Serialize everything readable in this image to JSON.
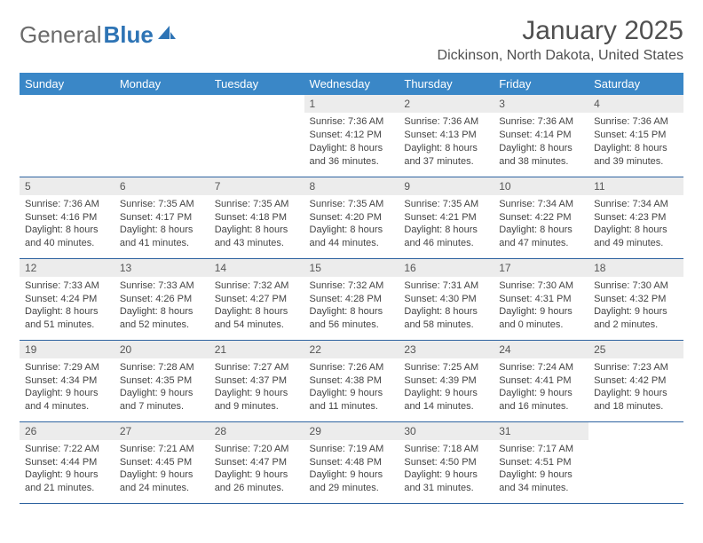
{
  "logo": {
    "text_general": "General",
    "text_blue": "Blue"
  },
  "title": "January 2025",
  "location": "Dickinson, North Dakota, United States",
  "colors": {
    "header_bg": "#3a87c7",
    "header_text": "#ffffff",
    "daynum_bg": "#ececec",
    "row_border": "#2e63a0",
    "logo_blue": "#2e74b5"
  },
  "day_headers": [
    "Sunday",
    "Monday",
    "Tuesday",
    "Wednesday",
    "Thursday",
    "Friday",
    "Saturday"
  ],
  "weeks": [
    [
      {
        "num": "",
        "lines": [
          "",
          "",
          "",
          ""
        ]
      },
      {
        "num": "",
        "lines": [
          "",
          "",
          "",
          ""
        ]
      },
      {
        "num": "",
        "lines": [
          "",
          "",
          "",
          ""
        ]
      },
      {
        "num": "1",
        "lines": [
          "Sunrise: 7:36 AM",
          "Sunset: 4:12 PM",
          "Daylight: 8 hours",
          "and 36 minutes."
        ]
      },
      {
        "num": "2",
        "lines": [
          "Sunrise: 7:36 AM",
          "Sunset: 4:13 PM",
          "Daylight: 8 hours",
          "and 37 minutes."
        ]
      },
      {
        "num": "3",
        "lines": [
          "Sunrise: 7:36 AM",
          "Sunset: 4:14 PM",
          "Daylight: 8 hours",
          "and 38 minutes."
        ]
      },
      {
        "num": "4",
        "lines": [
          "Sunrise: 7:36 AM",
          "Sunset: 4:15 PM",
          "Daylight: 8 hours",
          "and 39 minutes."
        ]
      }
    ],
    [
      {
        "num": "5",
        "lines": [
          "Sunrise: 7:36 AM",
          "Sunset: 4:16 PM",
          "Daylight: 8 hours",
          "and 40 minutes."
        ]
      },
      {
        "num": "6",
        "lines": [
          "Sunrise: 7:35 AM",
          "Sunset: 4:17 PM",
          "Daylight: 8 hours",
          "and 41 minutes."
        ]
      },
      {
        "num": "7",
        "lines": [
          "Sunrise: 7:35 AM",
          "Sunset: 4:18 PM",
          "Daylight: 8 hours",
          "and 43 minutes."
        ]
      },
      {
        "num": "8",
        "lines": [
          "Sunrise: 7:35 AM",
          "Sunset: 4:20 PM",
          "Daylight: 8 hours",
          "and 44 minutes."
        ]
      },
      {
        "num": "9",
        "lines": [
          "Sunrise: 7:35 AM",
          "Sunset: 4:21 PM",
          "Daylight: 8 hours",
          "and 46 minutes."
        ]
      },
      {
        "num": "10",
        "lines": [
          "Sunrise: 7:34 AM",
          "Sunset: 4:22 PM",
          "Daylight: 8 hours",
          "and 47 minutes."
        ]
      },
      {
        "num": "11",
        "lines": [
          "Sunrise: 7:34 AM",
          "Sunset: 4:23 PM",
          "Daylight: 8 hours",
          "and 49 minutes."
        ]
      }
    ],
    [
      {
        "num": "12",
        "lines": [
          "Sunrise: 7:33 AM",
          "Sunset: 4:24 PM",
          "Daylight: 8 hours",
          "and 51 minutes."
        ]
      },
      {
        "num": "13",
        "lines": [
          "Sunrise: 7:33 AM",
          "Sunset: 4:26 PM",
          "Daylight: 8 hours",
          "and 52 minutes."
        ]
      },
      {
        "num": "14",
        "lines": [
          "Sunrise: 7:32 AM",
          "Sunset: 4:27 PM",
          "Daylight: 8 hours",
          "and 54 minutes."
        ]
      },
      {
        "num": "15",
        "lines": [
          "Sunrise: 7:32 AM",
          "Sunset: 4:28 PM",
          "Daylight: 8 hours",
          "and 56 minutes."
        ]
      },
      {
        "num": "16",
        "lines": [
          "Sunrise: 7:31 AM",
          "Sunset: 4:30 PM",
          "Daylight: 8 hours",
          "and 58 minutes."
        ]
      },
      {
        "num": "17",
        "lines": [
          "Sunrise: 7:30 AM",
          "Sunset: 4:31 PM",
          "Daylight: 9 hours",
          "and 0 minutes."
        ]
      },
      {
        "num": "18",
        "lines": [
          "Sunrise: 7:30 AM",
          "Sunset: 4:32 PM",
          "Daylight: 9 hours",
          "and 2 minutes."
        ]
      }
    ],
    [
      {
        "num": "19",
        "lines": [
          "Sunrise: 7:29 AM",
          "Sunset: 4:34 PM",
          "Daylight: 9 hours",
          "and 4 minutes."
        ]
      },
      {
        "num": "20",
        "lines": [
          "Sunrise: 7:28 AM",
          "Sunset: 4:35 PM",
          "Daylight: 9 hours",
          "and 7 minutes."
        ]
      },
      {
        "num": "21",
        "lines": [
          "Sunrise: 7:27 AM",
          "Sunset: 4:37 PM",
          "Daylight: 9 hours",
          "and 9 minutes."
        ]
      },
      {
        "num": "22",
        "lines": [
          "Sunrise: 7:26 AM",
          "Sunset: 4:38 PM",
          "Daylight: 9 hours",
          "and 11 minutes."
        ]
      },
      {
        "num": "23",
        "lines": [
          "Sunrise: 7:25 AM",
          "Sunset: 4:39 PM",
          "Daylight: 9 hours",
          "and 14 minutes."
        ]
      },
      {
        "num": "24",
        "lines": [
          "Sunrise: 7:24 AM",
          "Sunset: 4:41 PM",
          "Daylight: 9 hours",
          "and 16 minutes."
        ]
      },
      {
        "num": "25",
        "lines": [
          "Sunrise: 7:23 AM",
          "Sunset: 4:42 PM",
          "Daylight: 9 hours",
          "and 18 minutes."
        ]
      }
    ],
    [
      {
        "num": "26",
        "lines": [
          "Sunrise: 7:22 AM",
          "Sunset: 4:44 PM",
          "Daylight: 9 hours",
          "and 21 minutes."
        ]
      },
      {
        "num": "27",
        "lines": [
          "Sunrise: 7:21 AM",
          "Sunset: 4:45 PM",
          "Daylight: 9 hours",
          "and 24 minutes."
        ]
      },
      {
        "num": "28",
        "lines": [
          "Sunrise: 7:20 AM",
          "Sunset: 4:47 PM",
          "Daylight: 9 hours",
          "and 26 minutes."
        ]
      },
      {
        "num": "29",
        "lines": [
          "Sunrise: 7:19 AM",
          "Sunset: 4:48 PM",
          "Daylight: 9 hours",
          "and 29 minutes."
        ]
      },
      {
        "num": "30",
        "lines": [
          "Sunrise: 7:18 AM",
          "Sunset: 4:50 PM",
          "Daylight: 9 hours",
          "and 31 minutes."
        ]
      },
      {
        "num": "31",
        "lines": [
          "Sunrise: 7:17 AM",
          "Sunset: 4:51 PM",
          "Daylight: 9 hours",
          "and 34 minutes."
        ]
      },
      {
        "num": "",
        "lines": [
          "",
          "",
          "",
          ""
        ]
      }
    ]
  ]
}
